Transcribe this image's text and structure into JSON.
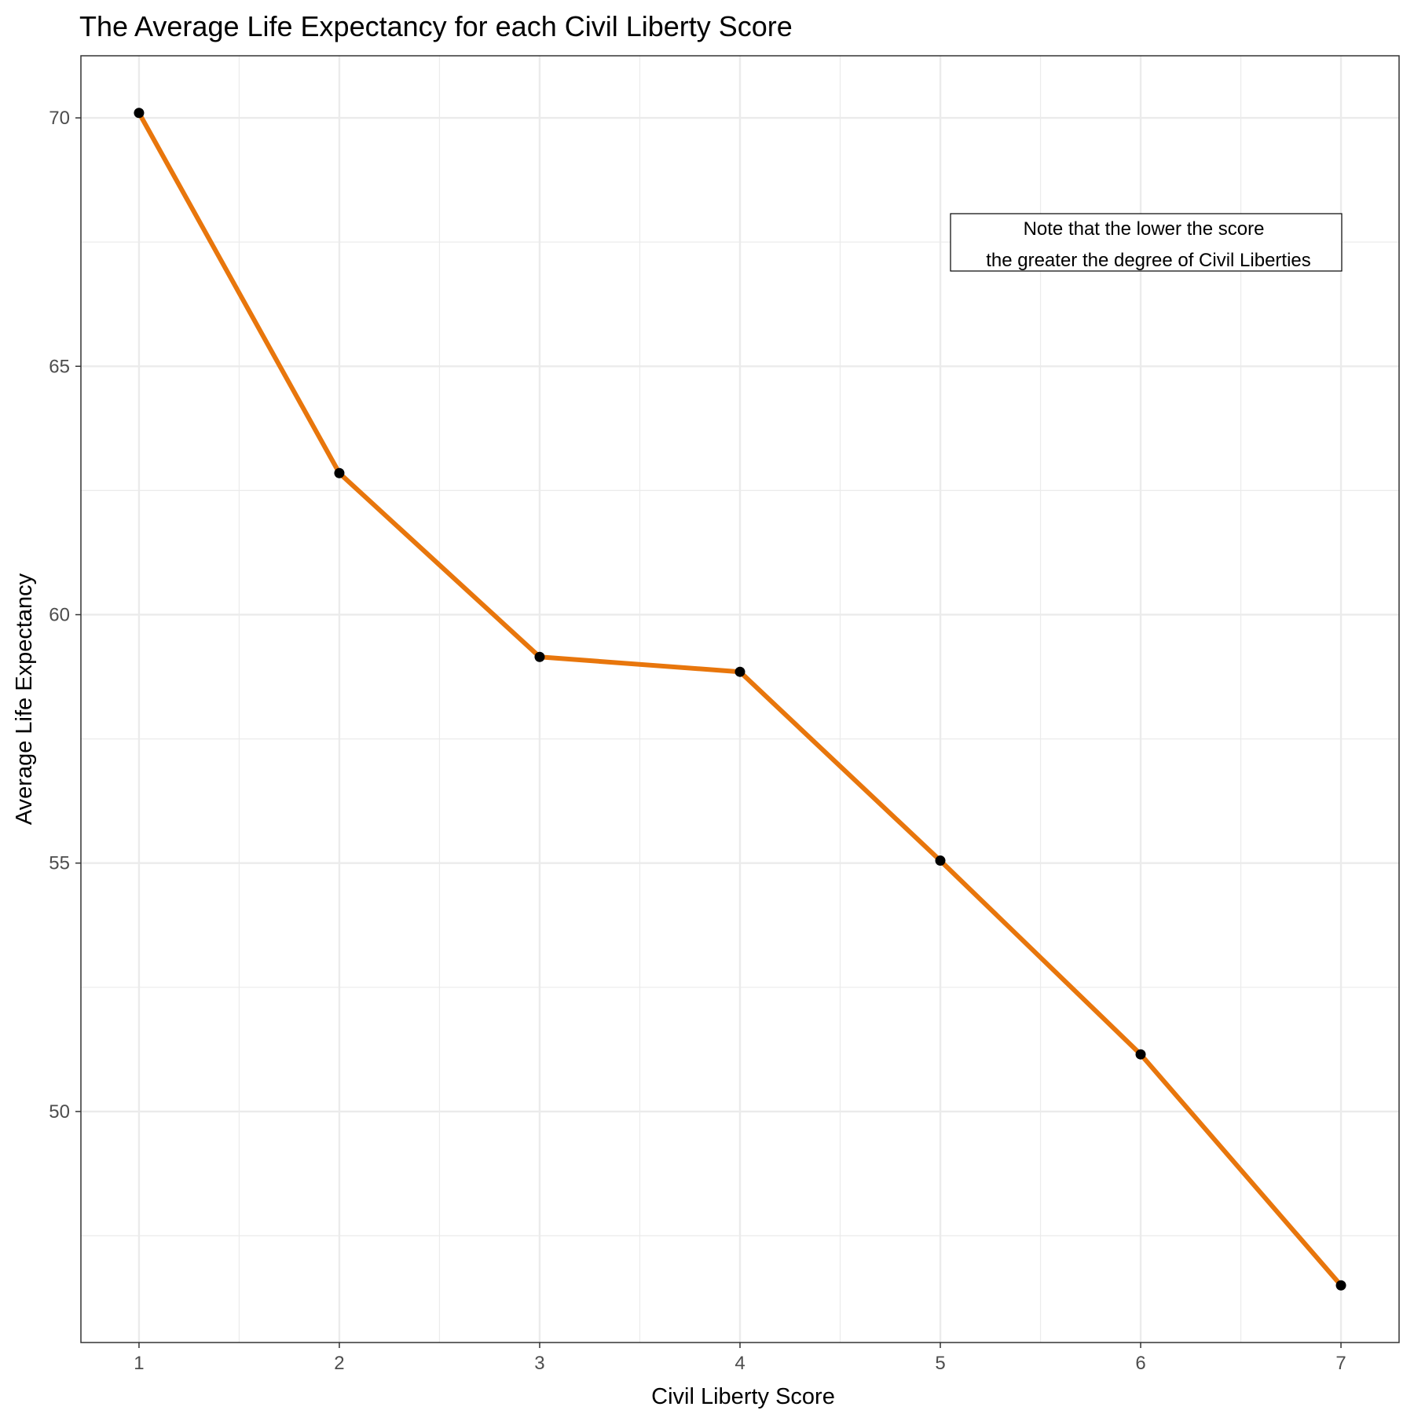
{
  "chart_data": {
    "type": "line",
    "title": "The Average Life Expectancy for each Civil Liberty Score",
    "xlabel": "Civil Liberty Score",
    "ylabel": "Average Life Expectancy",
    "x": [
      1,
      2,
      3,
      4,
      5,
      6,
      7
    ],
    "series": [
      {
        "values": [
          70.1,
          62.85,
          59.15,
          58.85,
          55.05,
          51.15,
          46.5
        ]
      }
    ],
    "xticks": [
      "1",
      "2",
      "3",
      "4",
      "5",
      "6",
      "7"
    ],
    "yticks": [
      "50",
      "55",
      "60",
      "65",
      "70"
    ],
    "xlim": [
      0.71,
      7.29
    ],
    "ylim": [
      45.35,
      71.25
    ],
    "grid": true,
    "annotation": {
      "lines": [
        "Note that the lower the score",
        "the greater the degree of Civil Liberties"
      ]
    },
    "colors": {
      "line": "#e8760c",
      "points": "#000000",
      "grid": "#ebebeb",
      "panel_border": "#333333",
      "tick_label": "#4d4d4d"
    }
  }
}
